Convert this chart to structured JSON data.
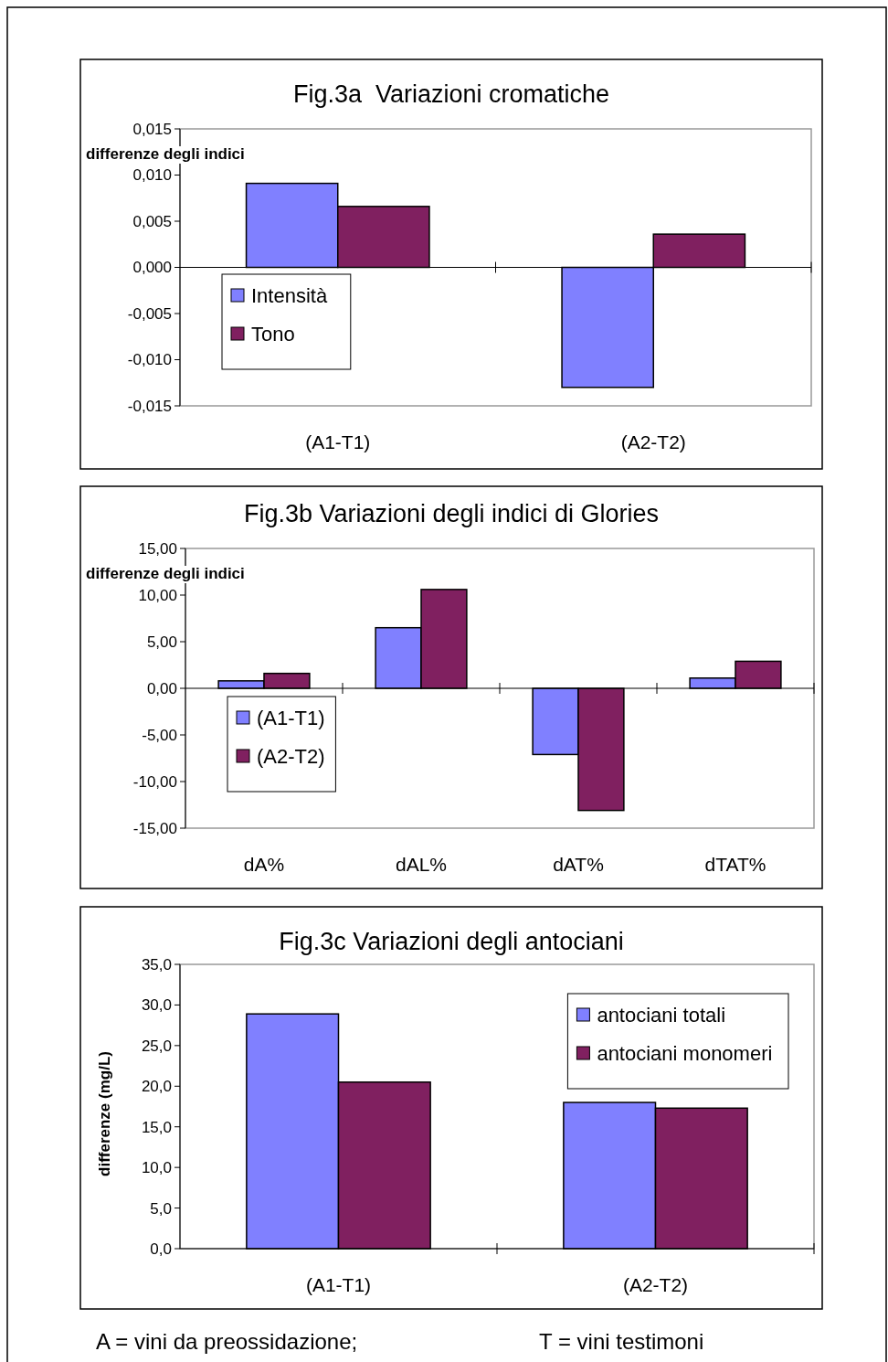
{
  "chart_data": [
    {
      "type": "bar",
      "title": "Fig.3a  Variazioni cromatiche",
      "ylabel": "differenze degli indici",
      "categories": [
        "(A1-T1)",
        "(A2-T2)"
      ],
      "series": [
        {
          "name": "Intensità",
          "color": "#8080ff",
          "values": [
            0.0091,
            -0.013
          ]
        },
        {
          "name": "Tono",
          "color": "#802060",
          "values": [
            0.0066,
            0.0036
          ]
        }
      ],
      "ylim": [
        -0.015,
        0.015
      ],
      "yticks": [
        {
          "value": -0.015,
          "label": "-0,015"
        },
        {
          "value": -0.01,
          "label": "-0,010"
        },
        {
          "value": -0.005,
          "label": "-0,005"
        },
        {
          "value": 0,
          "label": "0,000"
        },
        {
          "value": 0.005,
          "label": "0,005"
        },
        {
          "value": 0.01,
          "label": "0,010"
        },
        {
          "value": 0.015,
          "label": "0,015"
        }
      ],
      "legend": "bottom left"
    },
    {
      "type": "bar",
      "title": "Fig.3b Variazioni degli indici di Glories",
      "ylabel": "differenze degli indici",
      "categories": [
        "dA%",
        "dAL%",
        "dAT%",
        "dTAT%"
      ],
      "series": [
        {
          "name": "(A1-T1)",
          "color": "#8080ff",
          "values": [
            0.8,
            6.5,
            -7.1,
            1.1
          ]
        },
        {
          "name": "(A2-T2)",
          "color": "#802060",
          "values": [
            1.6,
            10.6,
            -13.1,
            2.9
          ]
        }
      ],
      "ylim": [
        -15,
        15
      ],
      "yticks": [
        {
          "value": -15,
          "label": "-15,00"
        },
        {
          "value": -10,
          "label": "-10,00"
        },
        {
          "value": -5,
          "label": "-5,00"
        },
        {
          "value": 0,
          "label": "0,00"
        },
        {
          "value": 5,
          "label": "5,00"
        },
        {
          "value": 10,
          "label": "10,00"
        },
        {
          "value": 15,
          "label": "15,00"
        }
      ],
      "legend": "bottom left"
    },
    {
      "type": "bar",
      "title": "Fig.3c Variazioni degli antociani",
      "ylabel": "differenze (mg/L)",
      "categories": [
        "(A1-T1)",
        "(A2-T2)"
      ],
      "series": [
        {
          "name": "antociani totali",
          "color": "#8080ff",
          "values": [
            28.9,
            18.0
          ]
        },
        {
          "name": "antociani monomeri",
          "color": "#802060",
          "values": [
            20.5,
            17.3
          ]
        }
      ],
      "ylim": [
        0,
        35
      ],
      "yticks": [
        {
          "value": 0,
          "label": "0,0"
        },
        {
          "value": 5,
          "label": "5,0"
        },
        {
          "value": 10,
          "label": "10,0"
        },
        {
          "value": 15,
          "label": "15,0"
        },
        {
          "value": 20,
          "label": "20,0"
        },
        {
          "value": 25,
          "label": "25,0"
        },
        {
          "value": 30,
          "label": "30,0"
        },
        {
          "value": 35,
          "label": "35,0"
        }
      ],
      "legend": "top right",
      "annotations": [
        "A = vini da preossidazione;",
        "T = vini testimoni"
      ]
    }
  ]
}
